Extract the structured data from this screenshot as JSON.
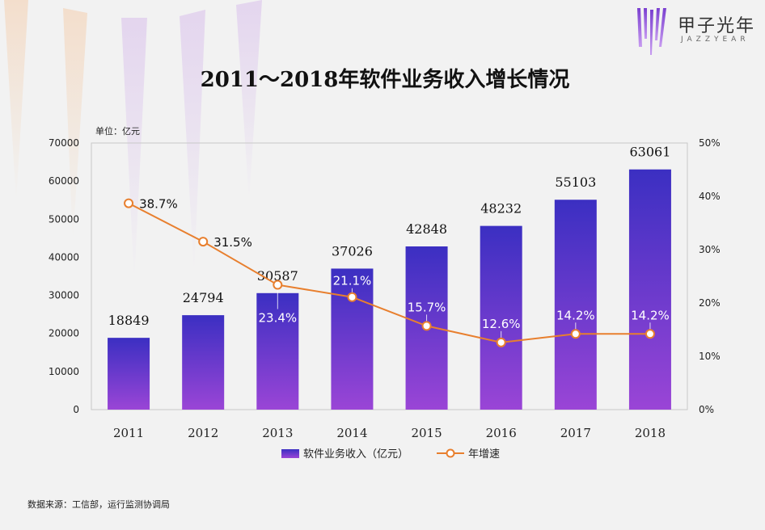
{
  "brand": {
    "name": "甲子光年",
    "subtitle": "JAZZYEAR"
  },
  "footer": {
    "source": "数据来源：工信部，运行监测协调局"
  },
  "colors": {
    "bar_top": "#3b2fc2",
    "bar_bottom": "#9a45d6",
    "line": "#e87f2e",
    "background": "#f2f2f2"
  },
  "chart_data": {
    "type": "bar",
    "title": "2011～2018年软件业务收入增长情况",
    "unit_label": "单位：亿元",
    "categories": [
      "2011",
      "2012",
      "2013",
      "2014",
      "2015",
      "2016",
      "2017",
      "2018"
    ],
    "y_left": {
      "min": 0,
      "max": 70000,
      "ticks": [
        "0",
        "10000",
        "20000",
        "30000",
        "40000",
        "50000",
        "60000",
        "70000"
      ]
    },
    "y_right": {
      "min": 0,
      "max": 50,
      "ticks": [
        "0%",
        "10%",
        "20%",
        "30%",
        "40%",
        "50%"
      ]
    },
    "series": [
      {
        "name": "软件业务收入（亿元）",
        "type": "bar",
        "axis": "left",
        "values": [
          18849,
          24794,
          30587,
          37026,
          42848,
          48232,
          55103,
          63061
        ],
        "labels": [
          "18849",
          "24794",
          "30587",
          "37026",
          "42848",
          "48232",
          "55103",
          "63061"
        ]
      },
      {
        "name": "年增速",
        "type": "line",
        "axis": "right",
        "values": [
          38.7,
          31.5,
          23.4,
          21.1,
          15.7,
          12.6,
          14.2,
          14.2
        ],
        "labels": [
          "38.7%",
          "31.5%",
          "23.4%",
          "21.1%",
          "15.7%",
          "12.6%",
          "14.2%",
          "14.2%"
        ]
      }
    ],
    "legend_position": "bottom"
  }
}
